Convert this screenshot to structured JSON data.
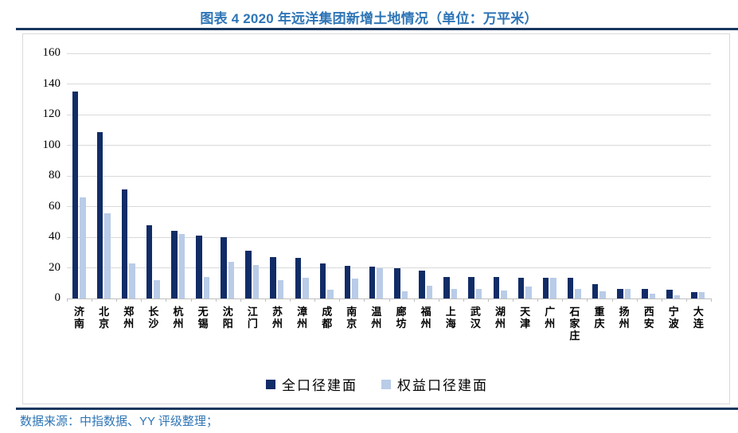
{
  "title": "图表 4 2020 年远洋集团新增土地情况（单位：万平米）",
  "source": "数据来源：中指数据、YY 评级整理；",
  "colors": {
    "accent_blue": "#2E75B6",
    "rule_navy": "#17375E",
    "dark_bar": "#112C66",
    "light_bar": "#B9CCE8",
    "gridline": "#D9D9D9",
    "axis_line": "#BFBFBF"
  },
  "chart_data": {
    "type": "bar",
    "title": "图表 4 2020 年远洋集团新增土地情况（单位：万平米）",
    "xlabel": "",
    "ylabel": "",
    "ylim": [
      0,
      160
    ],
    "ytick_step": 20,
    "grid": true,
    "legend_position": "bottom",
    "categories": [
      "济南",
      "北京",
      "郑州",
      "长沙",
      "杭州",
      "无锡",
      "沈阳",
      "江门",
      "苏州",
      "漳州",
      "成都",
      "南京",
      "温州",
      "廊坊",
      "福州",
      "上海",
      "武汉",
      "湖州",
      "天津",
      "广州",
      "石家庄",
      "重庆",
      "扬州",
      "西安",
      "宁波",
      "大连"
    ],
    "series": [
      {
        "name": "全口径建面",
        "key": "full-caliber-gfa",
        "color": "#112C66",
        "values": [
          135,
          108.5,
          71,
          48,
          44,
          41,
          40,
          31,
          27,
          26.5,
          23,
          21.5,
          21,
          19.5,
          18,
          14,
          14,
          14,
          13.5,
          13.5,
          13.5,
          9.5,
          6.5,
          6,
          5.5,
          4
        ]
      },
      {
        "name": "权益口径建面",
        "key": "equity-gfa",
        "color": "#B9CCE8",
        "values": [
          66,
          55.5,
          23,
          12,
          42,
          14,
          24,
          22,
          12,
          13.5,
          5.5,
          13,
          20,
          4.5,
          8.5,
          6.5,
          6,
          5,
          8,
          13.5,
          6.5,
          4.5,
          6,
          3,
          2,
          4
        ]
      }
    ]
  }
}
